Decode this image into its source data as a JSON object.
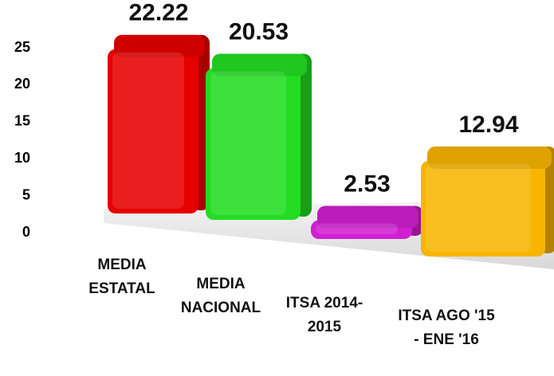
{
  "chart_data": {
    "type": "bar3d",
    "categories": [
      "MEDIA ESTATAL",
      "MEDIA NACIONAL",
      "ITSA 2014-2015",
      "ITSA AGO '15 - ENE '16"
    ],
    "values": [
      22.22,
      20.53,
      2.53,
      12.94
    ],
    "colors": [
      "#e60000",
      "#22dd22",
      "#d21fd2",
      "#f7b500"
    ],
    "ylim": [
      0,
      25
    ],
    "yticks": [
      0,
      5,
      10,
      15,
      20,
      25
    ]
  }
}
